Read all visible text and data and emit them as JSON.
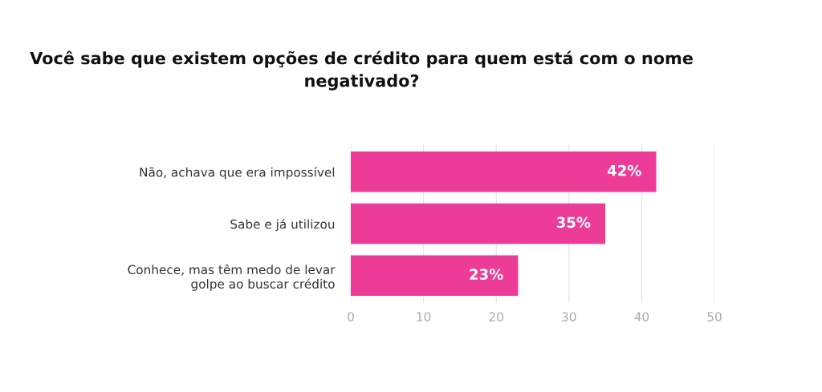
{
  "chart_data": {
    "type": "bar",
    "orientation": "horizontal",
    "title": "Você sabe que existem opções de crédito para quem está com o nome negativado?",
    "categories": [
      "Não, achava que era impossível",
      "Sabe e já utilizou",
      "Conhece, mas têm medo de levar golpe ao buscar crédito"
    ],
    "values": [
      42,
      35,
      23
    ],
    "value_labels": [
      "42%",
      "35%",
      "23%"
    ],
    "color": "#ec3c98",
    "xlim": [
      0,
      50
    ],
    "xticks": [
      0,
      10,
      20,
      30,
      40,
      50
    ],
    "grid": "x",
    "legend": false
  }
}
